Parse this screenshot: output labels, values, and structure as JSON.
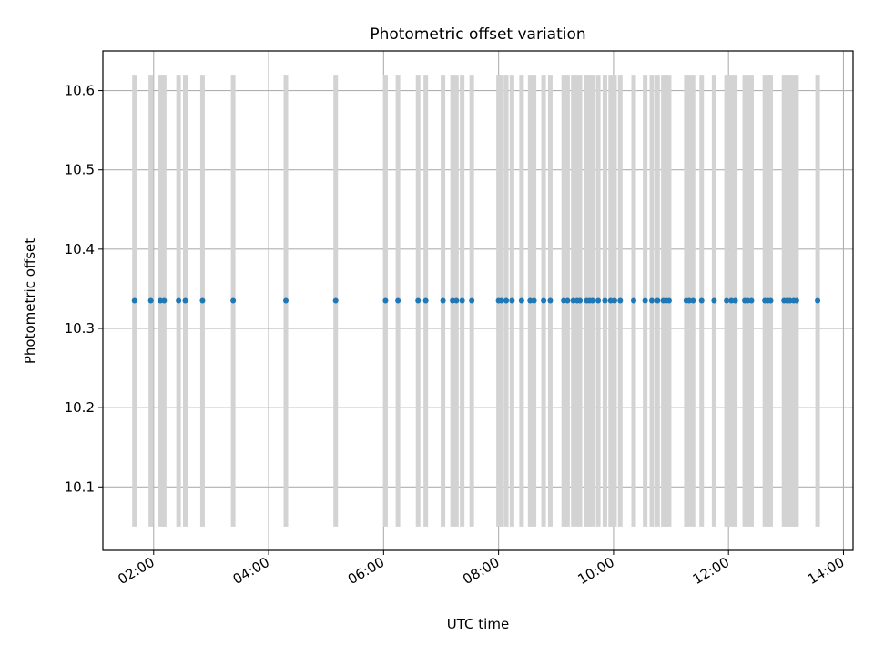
{
  "chart_data": {
    "type": "scatter",
    "title": "Photometric offset variation",
    "xlabel": "UTC time",
    "ylabel": "Photometric offset",
    "x_axis_type": "time",
    "xlim": [
      "01:07",
      "14:10"
    ],
    "ylim": [
      10.02,
      10.65
    ],
    "x_ticks": [
      "02:00",
      "04:00",
      "06:00",
      "08:00",
      "10:00",
      "12:00",
      "14:00"
    ],
    "y_ticks": [
      "10.1",
      "10.2",
      "10.3",
      "10.4",
      "10.5",
      "10.6"
    ],
    "grid": true,
    "colors": {
      "points": "#1f77b4",
      "error_bars": "#d3d3d3",
      "grid": "#b0b0b0"
    },
    "error_range": [
      10.05,
      10.62
    ],
    "series": [
      {
        "values": [
          {
            "x": "01:40",
            "y": 10.335
          },
          {
            "x": "01:57",
            "y": 10.335
          },
          {
            "x": "02:07",
            "y": 10.335
          },
          {
            "x": "02:11",
            "y": 10.335
          },
          {
            "x": "02:26",
            "y": 10.335
          },
          {
            "x": "02:33",
            "y": 10.335
          },
          {
            "x": "02:51",
            "y": 10.335
          },
          {
            "x": "03:23",
            "y": 10.335
          },
          {
            "x": "04:18",
            "y": 10.335
          },
          {
            "x": "05:10",
            "y": 10.335
          },
          {
            "x": "06:02",
            "y": 10.335
          },
          {
            "x": "06:15",
            "y": 10.335
          },
          {
            "x": "06:36",
            "y": 10.335
          },
          {
            "x": "06:44",
            "y": 10.335
          },
          {
            "x": "07:02",
            "y": 10.335
          },
          {
            "x": "07:12",
            "y": 10.335
          },
          {
            "x": "07:16",
            "y": 10.335
          },
          {
            "x": "07:22",
            "y": 10.335
          },
          {
            "x": "07:32",
            "y": 10.335
          },
          {
            "x": "08:00",
            "y": 10.335
          },
          {
            "x": "08:03",
            "y": 10.335
          },
          {
            "x": "08:08",
            "y": 10.335
          },
          {
            "x": "08:14",
            "y": 10.335
          },
          {
            "x": "08:24",
            "y": 10.335
          },
          {
            "x": "08:33",
            "y": 10.335
          },
          {
            "x": "08:37",
            "y": 10.335
          },
          {
            "x": "08:47",
            "y": 10.335
          },
          {
            "x": "08:54",
            "y": 10.335
          },
          {
            "x": "09:08",
            "y": 10.335
          },
          {
            "x": "09:12",
            "y": 10.335
          },
          {
            "x": "09:18",
            "y": 10.335
          },
          {
            "x": "09:22",
            "y": 10.335
          },
          {
            "x": "09:25",
            "y": 10.335
          },
          {
            "x": "09:32",
            "y": 10.335
          },
          {
            "x": "09:35",
            "y": 10.335
          },
          {
            "x": "09:38",
            "y": 10.335
          },
          {
            "x": "09:44",
            "y": 10.335
          },
          {
            "x": "09:51",
            "y": 10.335
          },
          {
            "x": "09:57",
            "y": 10.335
          },
          {
            "x": "10:01",
            "y": 10.335
          },
          {
            "x": "10:07",
            "y": 10.335
          },
          {
            "x": "10:21",
            "y": 10.335
          },
          {
            "x": "10:33",
            "y": 10.335
          },
          {
            "x": "10:40",
            "y": 10.335
          },
          {
            "x": "10:46",
            "y": 10.335
          },
          {
            "x": "10:52",
            "y": 10.335
          },
          {
            "x": "10:55",
            "y": 10.335
          },
          {
            "x": "10:58",
            "y": 10.335
          },
          {
            "x": "11:16",
            "y": 10.335
          },
          {
            "x": "11:19",
            "y": 10.335
          },
          {
            "x": "11:23",
            "y": 10.335
          },
          {
            "x": "11:32",
            "y": 10.335
          },
          {
            "x": "11:45",
            "y": 10.335
          },
          {
            "x": "11:58",
            "y": 10.335
          },
          {
            "x": "12:03",
            "y": 10.335
          },
          {
            "x": "12:07",
            "y": 10.335
          },
          {
            "x": "12:17",
            "y": 10.335
          },
          {
            "x": "12:20",
            "y": 10.335
          },
          {
            "x": "12:24",
            "y": 10.335
          },
          {
            "x": "12:38",
            "y": 10.335
          },
          {
            "x": "12:41",
            "y": 10.335
          },
          {
            "x": "12:44",
            "y": 10.335
          },
          {
            "x": "12:58",
            "y": 10.335
          },
          {
            "x": "13:01",
            "y": 10.335
          },
          {
            "x": "13:04",
            "y": 10.335
          },
          {
            "x": "13:08",
            "y": 10.335
          },
          {
            "x": "13:11",
            "y": 10.335
          },
          {
            "x": "13:33",
            "y": 10.335
          }
        ]
      }
    ]
  }
}
